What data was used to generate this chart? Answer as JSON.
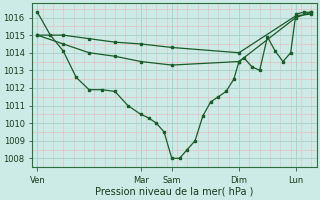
{
  "background_color": "#cceae6",
  "grid_major_color": "#aad4cc",
  "grid_minor_color": "#e8b8b8",
  "line_color": "#1a5c2a",
  "xlabel": "Pression niveau de la mer( hPa )",
  "ylim": [
    1007.5,
    1016.8
  ],
  "ytick_labels": [
    "1008",
    "1009",
    "1010",
    "1011",
    "1012",
    "1013",
    "1014",
    "1015",
    "1016"
  ],
  "ytick_vals": [
    1008,
    1009,
    1010,
    1011,
    1012,
    1013,
    1014,
    1015,
    1016
  ],
  "xtick_labels": [
    "Ven",
    "Mar",
    "Sam",
    "Dim",
    "Lun"
  ],
  "xtick_positions": [
    0,
    40,
    52,
    78,
    100
  ],
  "xlim": [
    -2,
    108
  ],
  "vline_positions": [
    0,
    40,
    52,
    78,
    100
  ],
  "series": [
    {
      "x": [
        0,
        5,
        10,
        15,
        20,
        25,
        30,
        35,
        40,
        43,
        46,
        49,
        52,
        55,
        58,
        61,
        64,
        67,
        70,
        73,
        76,
        78,
        80,
        83,
        86,
        89,
        92,
        95,
        98,
        100,
        103,
        106
      ],
      "y": [
        1016.3,
        1015.0,
        1014.1,
        1012.6,
        1011.9,
        1011.9,
        1011.8,
        1011.0,
        1010.5,
        1010.3,
        1010.0,
        1009.5,
        1008.0,
        1008.0,
        1008.5,
        1009.0,
        1010.4,
        1011.2,
        1011.5,
        1011.8,
        1012.5,
        1013.5,
        1013.7,
        1013.2,
        1013.0,
        1014.9,
        1014.1,
        1013.5,
        1014.0,
        1016.2,
        1016.3,
        1016.3
      ]
    },
    {
      "x": [
        0,
        10,
        20,
        30,
        40,
        52,
        78,
        100,
        106
      ],
      "y": [
        1015.0,
        1015.0,
        1014.8,
        1014.6,
        1014.5,
        1014.3,
        1014.0,
        1016.1,
        1016.2
      ]
    },
    {
      "x": [
        0,
        10,
        20,
        30,
        40,
        52,
        78,
        100,
        106
      ],
      "y": [
        1015.0,
        1014.5,
        1014.0,
        1013.8,
        1013.5,
        1013.3,
        1013.5,
        1016.0,
        1016.3
      ]
    }
  ],
  "figsize": [
    3.2,
    2.0
  ],
  "dpi": 100
}
